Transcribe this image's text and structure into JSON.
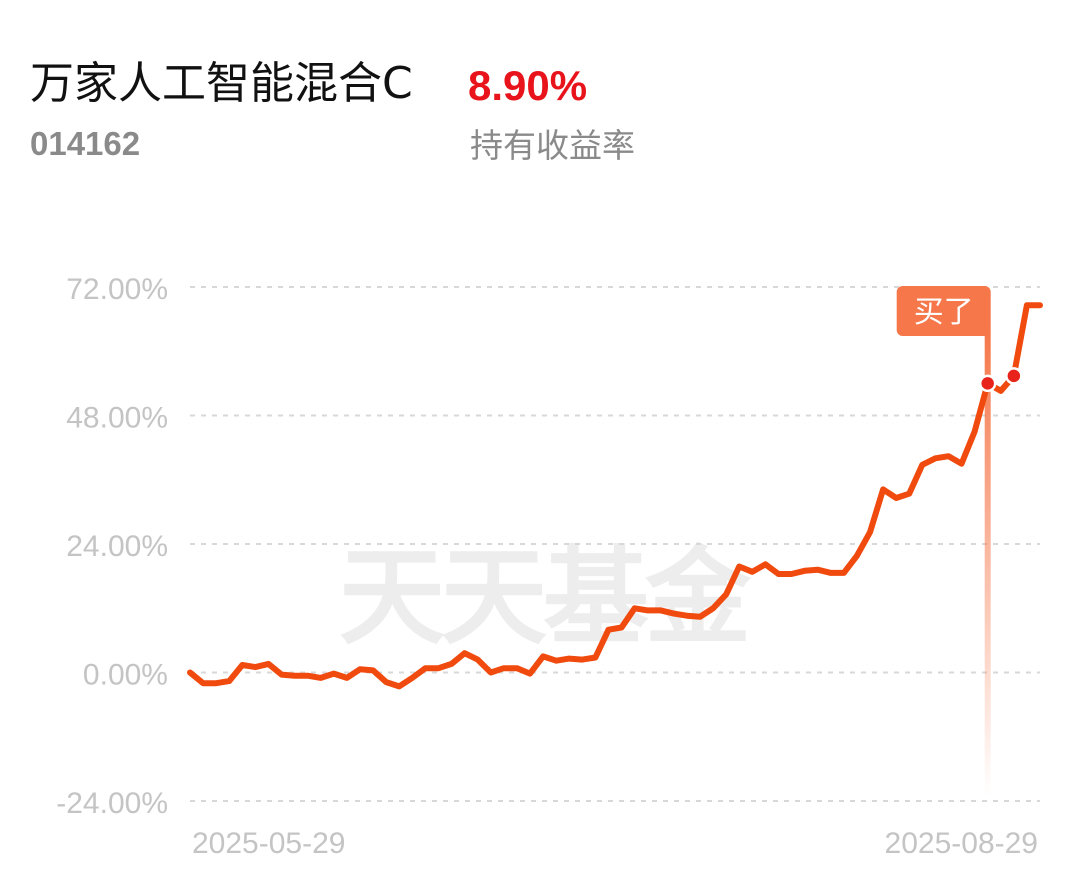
{
  "header": {
    "fund_name": "万家人工智能混合C",
    "fund_code": "014162",
    "return_value": "8.90%",
    "return_label": "持有收益率"
  },
  "watermark": "天天基金",
  "colors": {
    "line": "#f04a0e",
    "return": "#e8131b",
    "marker_tag": "#f5774a",
    "grid": "#d8d8d8",
    "axis_text": "#c4c4c4"
  },
  "chart_data": {
    "type": "line",
    "title": "",
    "xlabel": "",
    "ylabel": "",
    "ylim": [
      -24,
      72
    ],
    "y_ticks": [
      "72.00%",
      "48.00%",
      "24.00%",
      "0.00%",
      "-24.00%"
    ],
    "x_tick_labels": [
      "2025-05-29",
      "2025-08-29"
    ],
    "grid": "horizontal dashed",
    "series": [
      {
        "values": [
          0.0,
          -2.0,
          -2.0,
          -1.6,
          1.4,
          1.0,
          1.6,
          -0.4,
          -0.6,
          -0.6,
          -1.0,
          -0.2,
          -1.0,
          0.6,
          0.4,
          -1.8,
          -2.6,
          -1.0,
          0.8,
          0.8,
          1.6,
          3.6,
          2.4,
          0.0,
          0.8,
          0.8,
          -0.2,
          3.0,
          2.2,
          2.6,
          2.4,
          2.8,
          8.0,
          8.4,
          12.0,
          11.6,
          11.6,
          11.0,
          10.6,
          10.4,
          12.0,
          14.6,
          19.8,
          18.8,
          20.2,
          18.4,
          18.4,
          19.0,
          19.2,
          18.6,
          18.6,
          21.8,
          26.2,
          34.2,
          32.6,
          33.4,
          38.8,
          40.0,
          40.4,
          39.0,
          45.0,
          54.0,
          52.6,
          55.4,
          68.6,
          68.6
        ]
      }
    ],
    "buy_marker": {
      "label": "买了",
      "index": 61
    },
    "highlight_points": [
      61,
      63
    ]
  }
}
